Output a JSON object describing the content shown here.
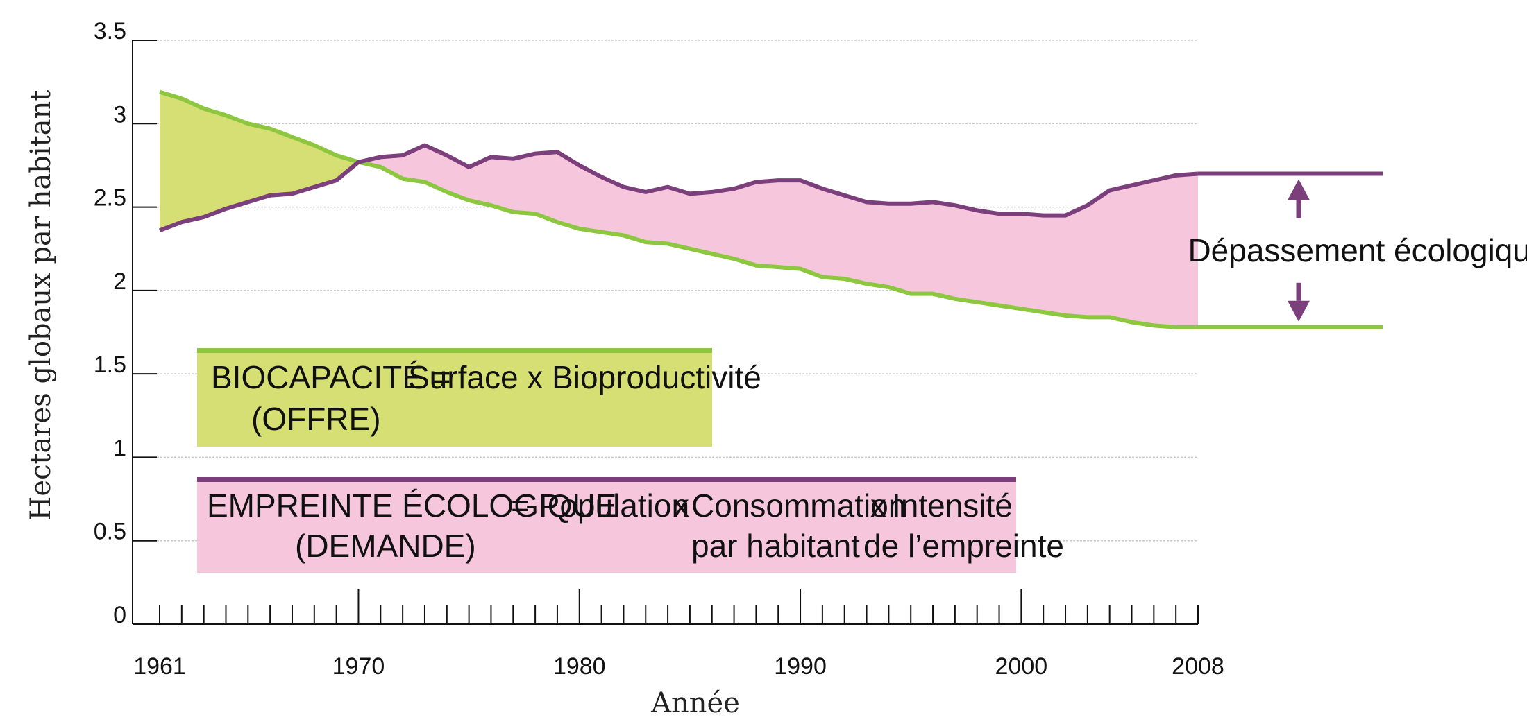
{
  "chart_data": {
    "type": "line",
    "xlabel": "Année",
    "ylabel": "Hectares globaux par habitant",
    "xlim": [
      1961,
      2008
    ],
    "ylim": [
      0,
      3.5
    ],
    "y_ticks": [
      "0",
      "0.5",
      "1",
      "1.5",
      "2",
      "2.5",
      "3",
      "3.5"
    ],
    "x_tick_labels": [
      "1961",
      "1970",
      "1980",
      "1990",
      "2000",
      "2008"
    ],
    "grid": true,
    "series": [
      {
        "key": "biocapacite",
        "color": "#8dc63f",
        "x": [
          1961,
          1962,
          1963,
          1964,
          1965,
          1966,
          1967,
          1968,
          1969,
          1970,
          1971,
          1972,
          1973,
          1974,
          1975,
          1976,
          1977,
          1978,
          1979,
          1980,
          1981,
          1982,
          1983,
          1984,
          1985,
          1986,
          1987,
          1988,
          1989,
          1990,
          1991,
          1992,
          1993,
          1994,
          1995,
          1996,
          1997,
          1998,
          1999,
          2000,
          2001,
          2002,
          2003,
          2004,
          2005,
          2006,
          2007,
          2008
        ],
        "values": [
          3.19,
          3.15,
          3.09,
          3.05,
          3.0,
          2.97,
          2.92,
          2.87,
          2.81,
          2.77,
          2.74,
          2.67,
          2.65,
          2.59,
          2.54,
          2.51,
          2.47,
          2.46,
          2.41,
          2.37,
          2.35,
          2.33,
          2.29,
          2.28,
          2.25,
          2.22,
          2.19,
          2.15,
          2.14,
          2.13,
          2.08,
          2.07,
          2.04,
          2.02,
          1.98,
          1.98,
          1.95,
          1.93,
          1.91,
          1.89,
          1.87,
          1.85,
          1.84,
          1.84,
          1.81,
          1.79,
          1.78,
          1.78
        ]
      },
      {
        "key": "empreinte",
        "color": "#7b3f7c",
        "x": [
          1961,
          1962,
          1963,
          1964,
          1965,
          1966,
          1967,
          1968,
          1969,
          1970,
          1971,
          1972,
          1973,
          1974,
          1975,
          1976,
          1977,
          1978,
          1979,
          1980,
          1981,
          1982,
          1983,
          1984,
          1985,
          1986,
          1987,
          1988,
          1989,
          1990,
          1991,
          1992,
          1993,
          1994,
          1995,
          1996,
          1997,
          1998,
          1999,
          2000,
          2001,
          2002,
          2003,
          2004,
          2005,
          2006,
          2007,
          2008
        ],
        "values": [
          2.36,
          2.41,
          2.44,
          2.49,
          2.53,
          2.57,
          2.58,
          2.62,
          2.66,
          2.77,
          2.8,
          2.81,
          2.87,
          2.81,
          2.74,
          2.8,
          2.79,
          2.82,
          2.83,
          2.75,
          2.68,
          2.62,
          2.59,
          2.62,
          2.58,
          2.59,
          2.61,
          2.65,
          2.66,
          2.66,
          2.61,
          2.57,
          2.53,
          2.52,
          2.52,
          2.53,
          2.51,
          2.48,
          2.46,
          2.46,
          2.45,
          2.45,
          2.51,
          2.6,
          2.63,
          2.66,
          2.69,
          2.7
        ]
      }
    ],
    "fill_colors": {
      "surplus": "#d6df74",
      "deficit": "#f5c6dc"
    },
    "annotation": {
      "text": "Dépassement écologique",
      "color": "#7b3f7c"
    },
    "boxes": {
      "biocapacite": {
        "line1": [
          "BIOCAPACITÉ =",
          "Surface x Bioproductivité"
        ],
        "line2": "(OFFRE)",
        "bg": "#d6df74",
        "bar": "#8dc63f"
      },
      "empreinte": {
        "col1": [
          "EMPREINTE ÉCOLOGIQUE",
          "(DEMANDE)"
        ],
        "eq": "= Population",
        "x1": "x",
        "col2": [
          "Consommation",
          "par habitant"
        ],
        "x2": "x",
        "col3": [
          "Intensité",
          "de l’empreinte"
        ],
        "bg": "#f5c6dc",
        "bar": "#7b3f7c"
      }
    }
  }
}
